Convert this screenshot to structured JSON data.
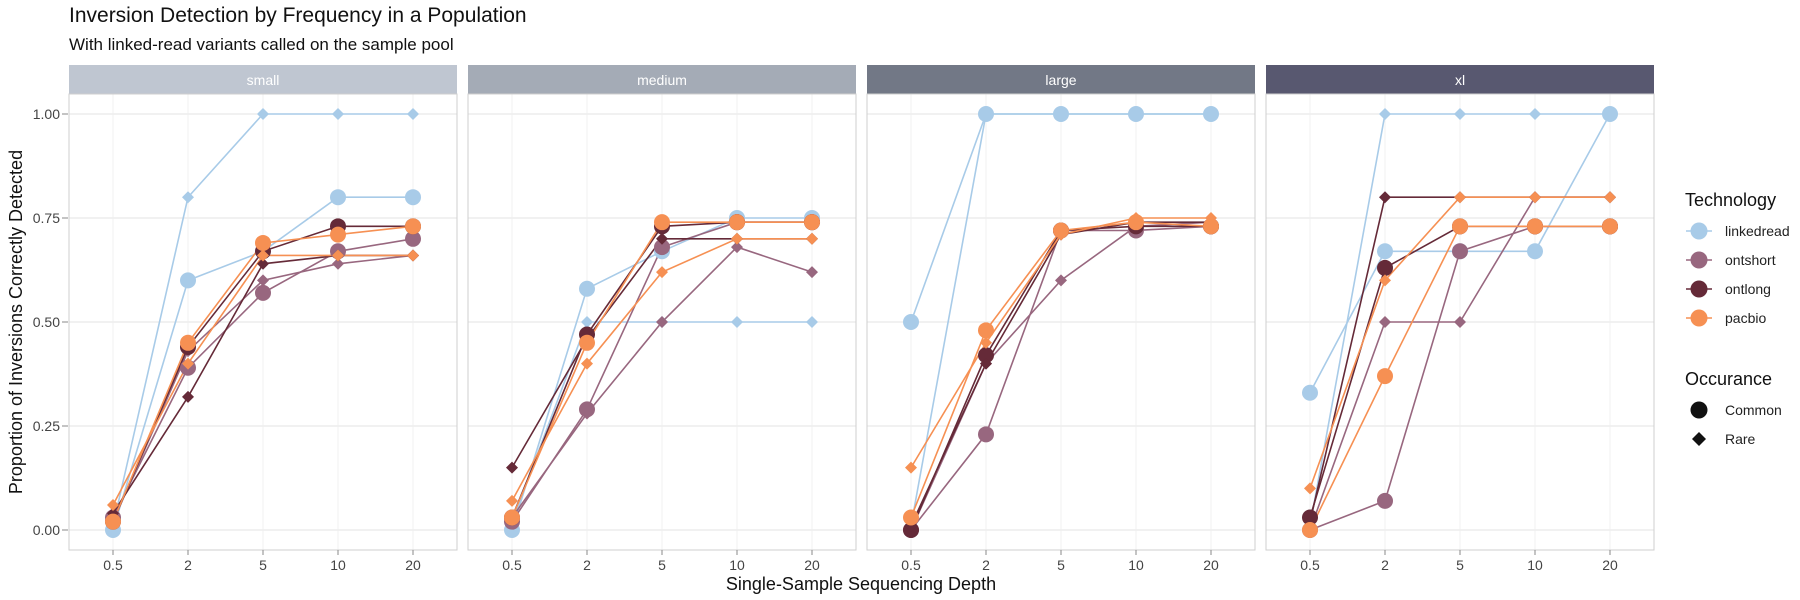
{
  "chart_data": {
    "type": "line",
    "title": "Inversion Detection by Frequency in a Population",
    "subtitle": "With linked-read variants called on the sample pool",
    "xlabel": "Single-Sample Sequencing Depth",
    "ylabel": "Proportion of Inversions Correctly Detected",
    "categories": [
      "0.5",
      "2",
      "5",
      "10",
      "20"
    ],
    "ylim": [
      0,
      1
    ],
    "yticks": [
      "0.00",
      "0.25",
      "0.50",
      "0.75",
      "1.00"
    ],
    "grid": true,
    "technologies": [
      {
        "name": "linkedread",
        "color": "#a8cbe8"
      },
      {
        "name": "ontshort",
        "color": "#98677f"
      },
      {
        "name": "ontlong",
        "color": "#652a38"
      },
      {
        "name": "pacbio",
        "color": "#f69053"
      }
    ],
    "legend": {
      "technology_title": "Technology",
      "occurrence_title": "Occurance",
      "occurrence_items": [
        {
          "name": "Common",
          "shape": "circle"
        },
        {
          "name": "Rare",
          "shape": "diamond"
        }
      ],
      "placement": "right"
    },
    "panels": [
      {
        "label": "small",
        "strip_color": "#bfc6d1",
        "series": [
          {
            "tech": "linkedread",
            "occurrence": "Common",
            "values": [
              0.0,
              0.6,
              0.67,
              0.8,
              0.8
            ]
          },
          {
            "tech": "linkedread",
            "occurrence": "Rare",
            "values": [
              0.01,
              0.8,
              1.0,
              1.0,
              1.0
            ]
          },
          {
            "tech": "ontshort",
            "occurrence": "Common",
            "values": [
              0.03,
              0.39,
              0.57,
              0.67,
              0.7
            ]
          },
          {
            "tech": "ontshort",
            "occurrence": "Rare",
            "values": [
              0.02,
              0.43,
              0.6,
              0.64,
              0.66
            ]
          },
          {
            "tech": "ontlong",
            "occurrence": "Common",
            "values": [
              0.02,
              0.44,
              0.67,
              0.73,
              0.73
            ]
          },
          {
            "tech": "ontlong",
            "occurrence": "Rare",
            "values": [
              0.04,
              0.32,
              0.64,
              0.66,
              0.66
            ]
          },
          {
            "tech": "pacbio",
            "occurrence": "Common",
            "values": [
              0.02,
              0.45,
              0.69,
              0.71,
              0.73
            ]
          },
          {
            "tech": "pacbio",
            "occurrence": "Rare",
            "values": [
              0.06,
              0.4,
              0.66,
              0.66,
              0.66
            ]
          }
        ]
      },
      {
        "label": "medium",
        "strip_color": "#a4abb6",
        "series": [
          {
            "tech": "linkedread",
            "occurrence": "Common",
            "values": [
              0.0,
              0.58,
              0.67,
              0.75,
              0.75
            ]
          },
          {
            "tech": "linkedread",
            "occurrence": "Rare",
            "values": [
              0.02,
              0.5,
              0.5,
              0.5,
              0.5
            ]
          },
          {
            "tech": "ontshort",
            "occurrence": "Common",
            "values": [
              0.02,
              0.29,
              0.68,
              0.74,
              0.74
            ]
          },
          {
            "tech": "ontshort",
            "occurrence": "Rare",
            "values": [
              0.03,
              0.28,
              0.5,
              0.68,
              0.62
            ]
          },
          {
            "tech": "ontlong",
            "occurrence": "Common",
            "values": [
              0.03,
              0.47,
              0.73,
              0.74,
              0.74
            ]
          },
          {
            "tech": "ontlong",
            "occurrence": "Rare",
            "values": [
              0.15,
              0.46,
              0.7,
              0.7,
              0.7
            ]
          },
          {
            "tech": "pacbio",
            "occurrence": "Common",
            "values": [
              0.03,
              0.45,
              0.74,
              0.74,
              0.74
            ]
          },
          {
            "tech": "pacbio",
            "occurrence": "Rare",
            "values": [
              0.07,
              0.4,
              0.62,
              0.7,
              0.7
            ]
          }
        ]
      },
      {
        "label": "large",
        "strip_color": "#727886",
        "series": [
          {
            "tech": "linkedread",
            "occurrence": "Common",
            "values": [
              0.5,
              1.0,
              1.0,
              1.0,
              1.0
            ]
          },
          {
            "tech": "linkedread",
            "occurrence": "Rare",
            "values": [
              0.01,
              1.0,
              1.0,
              1.0,
              1.0
            ]
          },
          {
            "tech": "ontshort",
            "occurrence": "Common",
            "values": [
              0.0,
              0.23,
              0.72,
              0.72,
              0.73
            ]
          },
          {
            "tech": "ontshort",
            "occurrence": "Rare",
            "values": [
              0.0,
              0.4,
              0.6,
              0.73,
              0.74
            ]
          },
          {
            "tech": "ontlong",
            "occurrence": "Common",
            "values": [
              0.0,
              0.42,
              0.72,
              0.73,
              0.73
            ]
          },
          {
            "tech": "ontlong",
            "occurrence": "Rare",
            "values": [
              0.01,
              0.4,
              0.71,
              0.74,
              0.74
            ]
          },
          {
            "tech": "pacbio",
            "occurrence": "Common",
            "values": [
              0.03,
              0.48,
              0.72,
              0.74,
              0.73
            ]
          },
          {
            "tech": "pacbio",
            "occurrence": "Rare",
            "values": [
              0.15,
              0.45,
              0.71,
              0.75,
              0.75
            ]
          }
        ]
      },
      {
        "label": "xl",
        "strip_color": "#585870",
        "series": [
          {
            "tech": "linkedread",
            "occurrence": "Common",
            "values": [
              0.33,
              0.67,
              0.67,
              0.67,
              1.0
            ]
          },
          {
            "tech": "linkedread",
            "occurrence": "Rare",
            "values": [
              0.01,
              1.0,
              1.0,
              1.0,
              1.0
            ]
          },
          {
            "tech": "ontshort",
            "occurrence": "Common",
            "values": [
              0.0,
              0.07,
              0.67,
              0.73,
              0.73
            ]
          },
          {
            "tech": "ontshort",
            "occurrence": "Rare",
            "values": [
              0.0,
              0.5,
              0.5,
              0.8,
              0.8
            ]
          },
          {
            "tech": "ontlong",
            "occurrence": "Common",
            "values": [
              0.03,
              0.63,
              0.73,
              0.73,
              0.73
            ]
          },
          {
            "tech": "ontlong",
            "occurrence": "Rare",
            "values": [
              0.02,
              0.8,
              0.8,
              0.8,
              0.8
            ]
          },
          {
            "tech": "pacbio",
            "occurrence": "Common",
            "values": [
              0.0,
              0.37,
              0.73,
              0.73,
              0.73
            ]
          },
          {
            "tech": "pacbio",
            "occurrence": "Rare",
            "values": [
              0.1,
              0.6,
              0.8,
              0.8,
              0.8
            ]
          }
        ]
      }
    ]
  }
}
